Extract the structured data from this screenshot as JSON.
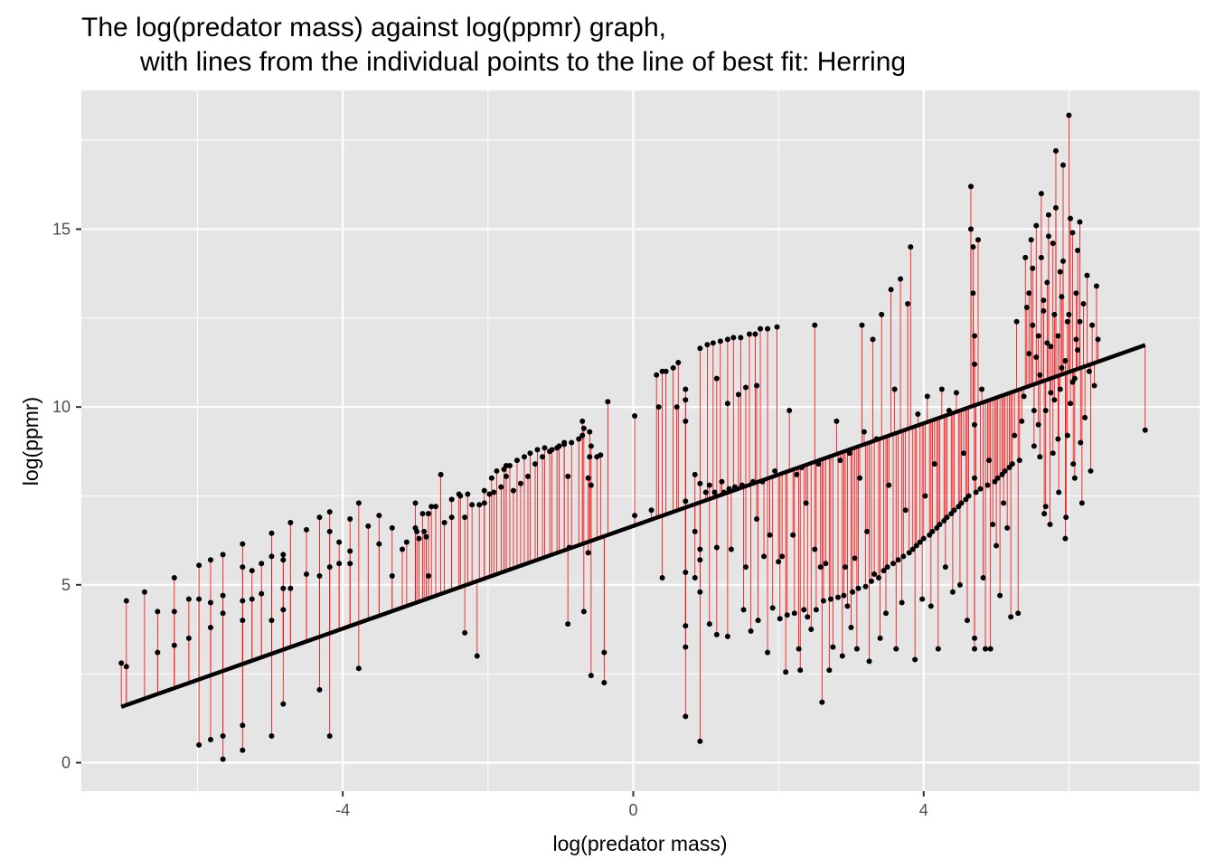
{
  "chart_data": {
    "type": "scatter",
    "title": "The log(predator mass) against log(ppmr) graph,",
    "subtitle": "with lines from the individual points to the line of best fit: Herring",
    "xlabel": "log(predator mass)",
    "ylabel": "log(ppmr)",
    "xlim": [
      -7.6,
      7.8
    ],
    "ylim": [
      -0.8,
      18.9
    ],
    "x_ticks": [
      -4,
      0,
      4
    ],
    "y_ticks": [
      0,
      5,
      10,
      15
    ],
    "grid": true,
    "colors": {
      "panel_background": "#e5e5e5",
      "grid": "#ffffff",
      "points": "#000000",
      "residual_lines": "#ff0000",
      "fit_line": "#000000"
    },
    "fit_line": {
      "x": [
        -7.05,
        7.05
      ],
      "y": [
        1.57,
        11.74
      ]
    },
    "points": [
      [
        -7.05,
        2.8
      ],
      [
        -6.98,
        2.7
      ],
      [
        -6.98,
        4.55
      ],
      [
        -6.73,
        4.8
      ],
      [
        -6.55,
        4.25
      ],
      [
        -6.55,
        3.1
      ],
      [
        -6.32,
        4.25
      ],
      [
        -6.32,
        5.2
      ],
      [
        -6.32,
        3.3
      ],
      [
        -6.12,
        4.6
      ],
      [
        -6.12,
        3.5
      ],
      [
        -5.98,
        5.55
      ],
      [
        -5.98,
        4.6
      ],
      [
        -5.98,
        0.5
      ],
      [
        -5.82,
        5.7
      ],
      [
        -5.82,
        4.5
      ],
      [
        -5.82,
        3.8
      ],
      [
        -5.82,
        0.65
      ],
      [
        -5.65,
        5.85
      ],
      [
        -5.65,
        4.7
      ],
      [
        -5.65,
        0.1
      ],
      [
        -5.65,
        0.75
      ],
      [
        -5.65,
        4.2
      ],
      [
        -5.38,
        6.15
      ],
      [
        -5.38,
        5.5
      ],
      [
        -5.38,
        4.55
      ],
      [
        -5.38,
        4.0
      ],
      [
        -5.38,
        1.05
      ],
      [
        -5.38,
        0.35
      ],
      [
        -5.25,
        5.4
      ],
      [
        -5.25,
        4.6
      ],
      [
        -5.12,
        5.6
      ],
      [
        -5.12,
        4.75
      ],
      [
        -4.98,
        5.8
      ],
      [
        -4.98,
        6.45
      ],
      [
        -4.98,
        4.0
      ],
      [
        -4.98,
        0.75
      ],
      [
        -4.82,
        5.85
      ],
      [
        -4.82,
        5.7
      ],
      [
        -4.82,
        4.3
      ],
      [
        -4.82,
        4.9
      ],
      [
        -4.82,
        1.65
      ],
      [
        -4.72,
        6.75
      ],
      [
        -4.72,
        4.9
      ],
      [
        -4.5,
        6.55
      ],
      [
        -4.5,
        5.3
      ],
      [
        -4.32,
        6.9
      ],
      [
        -4.32,
        5.25
      ],
      [
        -4.32,
        2.05
      ],
      [
        -4.18,
        5.5
      ],
      [
        -4.18,
        7.05
      ],
      [
        -4.18,
        6.5
      ],
      [
        -4.18,
        0.75
      ],
      [
        -4.05,
        6.2
      ],
      [
        -4.05,
        5.6
      ],
      [
        -3.9,
        6.85
      ],
      [
        -3.9,
        5.95
      ],
      [
        -3.9,
        5.6
      ],
      [
        -3.78,
        7.3
      ],
      [
        -3.78,
        2.65
      ],
      [
        -3.65,
        6.65
      ],
      [
        -3.5,
        6.95
      ],
      [
        -3.5,
        6.15
      ],
      [
        -3.32,
        6.6
      ],
      [
        -3.32,
        5.25
      ],
      [
        -3.18,
        6.0
      ],
      [
        -3.12,
        6.2
      ],
      [
        -3.0,
        6.6
      ],
      [
        -3.0,
        7.3
      ],
      [
        -2.98,
        6.5
      ],
      [
        -2.95,
        6.3
      ],
      [
        -2.88,
        6.5
      ],
      [
        -2.85,
        6.35
      ],
      [
        -2.82,
        5.25
      ],
      [
        -2.78,
        7.2
      ],
      [
        -2.72,
        7.2
      ],
      [
        -2.6,
        6.75
      ],
      [
        -2.5,
        6.9
      ],
      [
        -2.4,
        7.55
      ],
      [
        -2.32,
        6.9
      ],
      [
        -2.32,
        3.65
      ],
      [
        -2.22,
        7.25
      ],
      [
        -2.12,
        7.25
      ],
      [
        -2.05,
        7.3
      ],
      [
        -1.98,
        7.55
      ],
      [
        -1.92,
        7.6
      ],
      [
        -1.82,
        7.75
      ],
      [
        -1.75,
        8.05
      ],
      [
        -1.75,
        8.35
      ],
      [
        -1.65,
        7.65
      ],
      [
        -1.55,
        7.85
      ],
      [
        -1.45,
        8.05
      ],
      [
        -1.35,
        8.4
      ],
      [
        -1.25,
        8.6
      ],
      [
        -1.15,
        8.75
      ],
      [
        -1.05,
        8.85
      ],
      [
        -0.95,
        8.95
      ],
      [
        -0.85,
        9.0
      ],
      [
        -0.75,
        9.1
      ],
      [
        -0.6,
        8.6
      ],
      [
        -0.5,
        8.6
      ],
      [
        -2.9,
        7.0
      ],
      [
        -2.82,
        7.0
      ],
      [
        -2.65,
        8.1
      ],
      [
        -2.5,
        7.4
      ],
      [
        -2.38,
        7.5
      ],
      [
        -2.28,
        7.55
      ],
      [
        -2.15,
        3.0
      ],
      [
        -2.05,
        7.65
      ],
      [
        -1.95,
        8.0
      ],
      [
        -1.88,
        8.2
      ],
      [
        -1.78,
        8.25
      ],
      [
        -1.7,
        8.35
      ],
      [
        -1.6,
        8.5
      ],
      [
        -1.5,
        8.6
      ],
      [
        -1.42,
        8.7
      ],
      [
        -1.32,
        8.8
      ],
      [
        -1.22,
        8.85
      ],
      [
        -1.12,
        8.8
      ],
      [
        -1.02,
        8.9
      ],
      [
        -0.95,
        9.0
      ],
      [
        -0.9,
        8.05
      ],
      [
        -0.88,
        6.05
      ],
      [
        -0.9,
        3.9
      ],
      [
        -0.7,
        9.6
      ],
      [
        -0.7,
        9.2
      ],
      [
        -0.68,
        9.4
      ],
      [
        -0.68,
        4.25
      ],
      [
        -0.62,
        8.0
      ],
      [
        -0.62,
        5.9
      ],
      [
        -0.6,
        9.3
      ],
      [
        -0.58,
        8.9
      ],
      [
        -0.58,
        7.8
      ],
      [
        -0.58,
        2.45
      ],
      [
        -0.45,
        8.65
      ],
      [
        -0.4,
        3.1
      ],
      [
        -0.4,
        2.25
      ],
      [
        -0.35,
        10.15
      ],
      [
        0.02,
        9.75
      ],
      [
        0.02,
        6.95
      ],
      [
        0.25,
        7.1
      ],
      [
        0.32,
        10.9
      ],
      [
        0.35,
        10.0
      ],
      [
        0.4,
        5.2
      ],
      [
        0.4,
        11.0
      ],
      [
        0.45,
        11.0
      ],
      [
        0.55,
        11.1
      ],
      [
        0.6,
        10.0
      ],
      [
        0.62,
        11.25
      ],
      [
        0.72,
        5.35
      ],
      [
        0.72,
        7.35
      ],
      [
        0.72,
        10.5
      ],
      [
        0.72,
        10.2
      ],
      [
        0.72,
        9.6
      ],
      [
        0.72,
        3.85
      ],
      [
        0.72,
        3.25
      ],
      [
        0.72,
        1.3
      ],
      [
        0.85,
        8.1
      ],
      [
        0.85,
        6.5
      ],
      [
        0.85,
        5.2
      ],
      [
        0.92,
        11.65
      ],
      [
        0.92,
        7.85
      ],
      [
        0.92,
        6.0
      ],
      [
        0.92,
        5.7
      ],
      [
        0.92,
        4.8
      ],
      [
        0.92,
        0.6
      ],
      [
        1.0,
        7.6
      ],
      [
        1.02,
        11.75
      ],
      [
        1.05,
        7.8
      ],
      [
        1.05,
        3.9
      ],
      [
        1.1,
        11.8
      ],
      [
        1.12,
        7.6
      ],
      [
        1.15,
        10.8
      ],
      [
        1.15,
        6.05
      ],
      [
        1.15,
        3.6
      ],
      [
        1.2,
        11.85
      ],
      [
        1.22,
        7.9
      ],
      [
        1.25,
        7.6
      ],
      [
        1.3,
        11.9
      ],
      [
        1.3,
        3.55
      ],
      [
        1.3,
        10.1
      ],
      [
        1.32,
        7.7
      ],
      [
        1.35,
        6.0
      ],
      [
        1.38,
        11.95
      ],
      [
        1.4,
        7.75
      ],
      [
        1.45,
        10.35
      ],
      [
        1.48,
        11.95
      ],
      [
        1.5,
        7.8
      ],
      [
        1.52,
        4.3
      ],
      [
        1.55,
        10.55
      ],
      [
        1.55,
        5.5
      ],
      [
        1.6,
        12.05
      ],
      [
        1.62,
        3.7
      ],
      [
        1.65,
        7.9
      ],
      [
        1.68,
        12.05
      ],
      [
        1.7,
        10.6
      ],
      [
        1.7,
        6.85
      ],
      [
        1.72,
        4.0
      ],
      [
        1.75,
        12.2
      ],
      [
        1.78,
        7.9
      ],
      [
        1.8,
        5.8
      ],
      [
        1.85,
        12.2
      ],
      [
        1.85,
        3.1
      ],
      [
        1.88,
        6.4
      ],
      [
        1.92,
        4.35
      ],
      [
        1.95,
        8.2
      ],
      [
        1.98,
        12.25
      ],
      [
        2.0,
        5.65
      ],
      [
        2.02,
        4.05
      ],
      [
        2.05,
        5.8
      ],
      [
        2.1,
        2.55
      ],
      [
        2.12,
        4.15
      ],
      [
        2.15,
        9.9
      ],
      [
        2.2,
        6.4
      ],
      [
        2.22,
        4.2
      ],
      [
        2.25,
        8.1
      ],
      [
        2.28,
        3.2
      ],
      [
        2.3,
        2.6
      ],
      [
        2.32,
        8.3
      ],
      [
        2.35,
        4.3
      ],
      [
        2.38,
        7.3
      ],
      [
        2.4,
        4.1
      ],
      [
        2.45,
        3.75
      ],
      [
        2.5,
        6.0
      ],
      [
        2.5,
        12.3
      ],
      [
        2.52,
        4.3
      ],
      [
        2.55,
        8.4
      ],
      [
        2.58,
        5.5
      ],
      [
        2.6,
        1.7
      ],
      [
        2.62,
        4.55
      ],
      [
        2.65,
        5.6
      ],
      [
        2.7,
        2.6
      ],
      [
        2.72,
        4.6
      ],
      [
        2.75,
        3.25
      ],
      [
        2.8,
        9.6
      ],
      [
        2.82,
        4.65
      ],
      [
        2.85,
        8.5
      ],
      [
        2.88,
        3.0
      ],
      [
        2.9,
        4.7
      ],
      [
        2.92,
        5.5
      ],
      [
        2.95,
        4.4
      ],
      [
        2.98,
        8.7
      ],
      [
        3.0,
        3.8
      ],
      [
        3.02,
        4.8
      ],
      [
        3.05,
        5.75
      ],
      [
        3.08,
        3.2
      ],
      [
        3.1,
        4.9
      ],
      [
        3.12,
        8.0
      ],
      [
        3.15,
        12.3
      ],
      [
        3.18,
        9.3
      ],
      [
        3.2,
        4.95
      ],
      [
        3.22,
        6.5
      ],
      [
        3.25,
        2.85
      ],
      [
        3.28,
        5.1
      ],
      [
        3.3,
        11.9
      ],
      [
        3.32,
        5.3
      ],
      [
        3.35,
        9.1
      ],
      [
        3.38,
        5.2
      ],
      [
        3.4,
        3.5
      ],
      [
        3.42,
        12.6
      ],
      [
        3.45,
        5.4
      ],
      [
        3.48,
        4.2
      ],
      [
        3.5,
        5.5
      ],
      [
        3.52,
        7.8
      ],
      [
        3.55,
        13.3
      ],
      [
        3.58,
        5.6
      ],
      [
        3.6,
        10.5
      ],
      [
        3.62,
        3.2
      ],
      [
        3.65,
        5.7
      ],
      [
        3.68,
        13.6
      ],
      [
        3.7,
        4.5
      ],
      [
        3.72,
        5.8
      ],
      [
        3.75,
        7.1
      ],
      [
        3.78,
        12.9
      ],
      [
        3.8,
        5.9
      ],
      [
        3.82,
        14.5
      ],
      [
        3.85,
        6.0
      ],
      [
        3.88,
        2.9
      ],
      [
        3.9,
        6.1
      ],
      [
        3.92,
        9.8
      ],
      [
        3.95,
        6.2
      ],
      [
        3.98,
        4.6
      ],
      [
        4.0,
        6.3
      ],
      [
        4.02,
        7.5
      ],
      [
        4.05,
        10.3
      ],
      [
        4.08,
        6.4
      ],
      [
        4.1,
        4.4
      ],
      [
        4.12,
        6.5
      ],
      [
        4.15,
        8.4
      ],
      [
        4.18,
        6.6
      ],
      [
        4.2,
        3.2
      ],
      [
        4.22,
        6.7
      ],
      [
        4.25,
        10.5
      ],
      [
        4.28,
        6.8
      ],
      [
        4.3,
        5.5
      ],
      [
        4.32,
        6.9
      ],
      [
        4.35,
        9.9
      ],
      [
        4.38,
        7.0
      ],
      [
        4.4,
        4.8
      ],
      [
        4.42,
        7.1
      ],
      [
        4.45,
        10.4
      ],
      [
        4.48,
        7.2
      ],
      [
        4.5,
        5.0
      ],
      [
        4.52,
        7.3
      ],
      [
        4.55,
        8.7
      ],
      [
        4.58,
        7.4
      ],
      [
        4.6,
        4.0
      ],
      [
        4.62,
        7.5
      ],
      [
        4.65,
        16.2
      ],
      [
        4.65,
        15.0
      ],
      [
        4.68,
        14.5
      ],
      [
        4.68,
        13.2
      ],
      [
        4.7,
        12.0
      ],
      [
        4.7,
        11.2
      ],
      [
        4.7,
        9.5
      ],
      [
        4.7,
        8.0
      ],
      [
        4.7,
        3.5
      ],
      [
        4.7,
        3.2
      ],
      [
        4.72,
        7.6
      ],
      [
        4.75,
        14.7
      ],
      [
        4.78,
        7.7
      ],
      [
        4.8,
        10.5
      ],
      [
        4.82,
        5.2
      ],
      [
        4.85,
        3.2
      ],
      [
        4.88,
        7.8
      ],
      [
        4.9,
        8.5
      ],
      [
        4.92,
        3.2
      ],
      [
        4.95,
        6.7
      ],
      [
        4.98,
        7.9
      ],
      [
        5.0,
        6.1
      ],
      [
        5.02,
        8.0
      ],
      [
        5.05,
        4.7
      ],
      [
        5.08,
        8.1
      ],
      [
        5.1,
        7.3
      ],
      [
        5.12,
        8.2
      ],
      [
        5.15,
        6.6
      ],
      [
        5.18,
        8.3
      ],
      [
        5.2,
        4.1
      ],
      [
        5.22,
        8.4
      ],
      [
        5.25,
        9.2
      ],
      [
        5.28,
        12.4
      ],
      [
        5.3,
        4.2
      ],
      [
        5.32,
        8.5
      ],
      [
        5.35,
        9.6
      ],
      [
        5.38,
        10.3
      ],
      [
        5.4,
        14.2
      ],
      [
        5.42,
        12.8
      ],
      [
        5.45,
        11.5
      ],
      [
        5.48,
        14.7
      ],
      [
        5.5,
        13.9
      ],
      [
        5.52,
        9.9
      ],
      [
        5.55,
        15.1
      ],
      [
        5.58,
        12.0
      ],
      [
        5.6,
        8.6
      ],
      [
        5.62,
        16.0
      ],
      [
        5.65,
        13.0
      ],
      [
        5.68,
        7.2
      ],
      [
        5.7,
        11.8
      ],
      [
        5.72,
        15.4
      ],
      [
        5.75,
        10.4
      ],
      [
        5.78,
        14.6
      ],
      [
        5.8,
        12.6
      ],
      [
        5.82,
        17.2
      ],
      [
        5.85,
        9.1
      ],
      [
        5.88,
        13.8
      ],
      [
        5.9,
        11.1
      ],
      [
        5.92,
        16.8
      ],
      [
        5.95,
        6.3
      ],
      [
        5.98,
        12.4
      ],
      [
        6.0,
        18.2
      ],
      [
        6.02,
        10.1
      ],
      [
        6.05,
        14.9
      ],
      [
        6.08,
        8.0
      ],
      [
        6.1,
        13.2
      ],
      [
        6.12,
        11.6
      ],
      [
        6.15,
        15.2
      ],
      [
        6.18,
        7.3
      ],
      [
        6.2,
        12.9
      ],
      [
        6.22,
        9.7
      ],
      [
        6.25,
        13.7
      ],
      [
        6.28,
        11.0
      ],
      [
        6.3,
        8.2
      ],
      [
        6.32,
        12.3
      ],
      [
        6.35,
        10.6
      ],
      [
        6.38,
        13.4
      ],
      [
        6.4,
        11.9
      ],
      [
        5.5,
        12.3
      ],
      [
        5.55,
        11.4
      ],
      [
        5.6,
        10.9
      ],
      [
        5.65,
        12.7
      ],
      [
        5.7,
        13.5
      ],
      [
        5.75,
        11.7
      ],
      [
        5.8,
        10.2
      ],
      [
        5.85,
        12.0
      ],
      [
        5.9,
        13.1
      ],
      [
        5.95,
        11.3
      ],
      [
        6.0,
        12.6
      ],
      [
        6.05,
        10.7
      ],
      [
        6.1,
        11.9
      ],
      [
        6.15,
        12.4
      ],
      [
        5.52,
        8.9
      ],
      [
        5.58,
        9.5
      ],
      [
        5.68,
        9.9
      ],
      [
        5.78,
        8.7
      ],
      [
        5.88,
        10.5
      ],
      [
        5.98,
        9.2
      ],
      [
        6.08,
        10.8
      ],
      [
        5.45,
        13.2
      ],
      [
        5.62,
        14.2
      ],
      [
        5.72,
        14.8
      ],
      [
        5.82,
        15.6
      ],
      [
        5.92,
        14.1
      ],
      [
        6.02,
        15.3
      ],
      [
        6.12,
        14.4
      ],
      [
        5.66,
        7.0
      ],
      [
        5.74,
        6.7
      ],
      [
        5.86,
        7.6
      ],
      [
        5.96,
        6.9
      ],
      [
        6.06,
        8.4
      ],
      [
        6.16,
        9.0
      ],
      [
        7.05,
        9.35
      ]
    ]
  }
}
